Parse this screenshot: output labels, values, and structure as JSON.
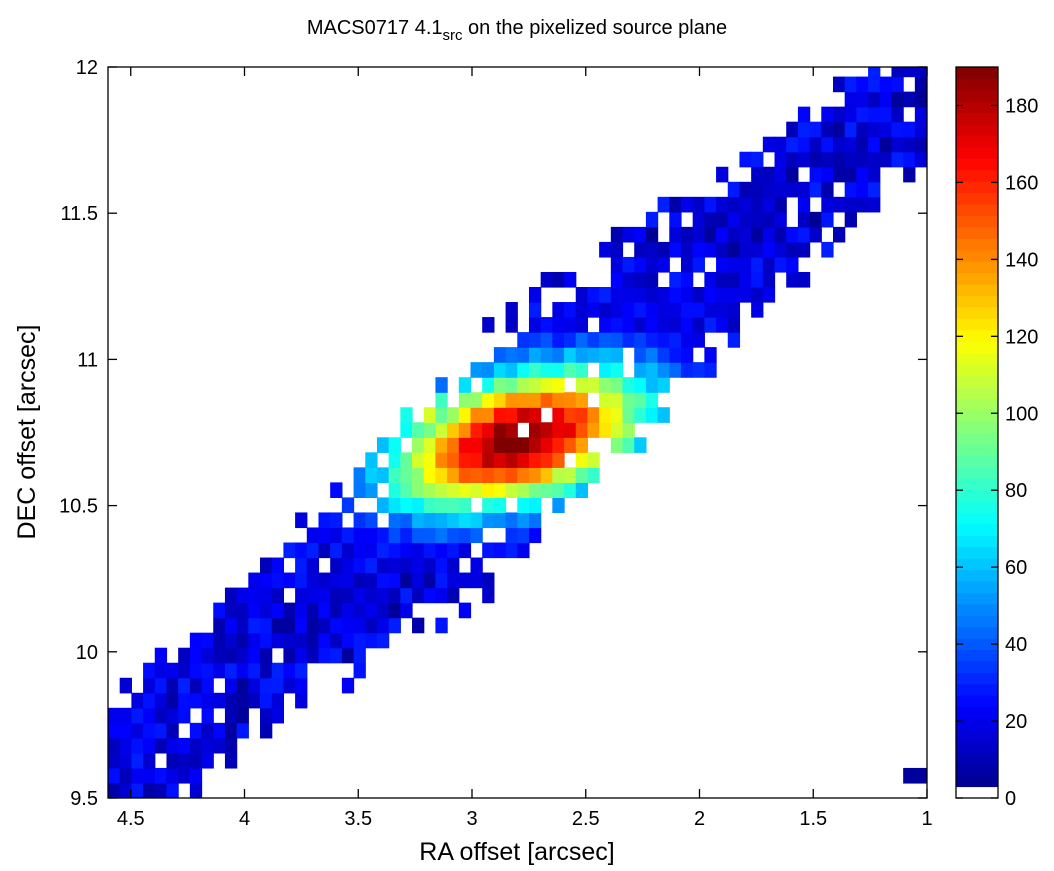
{
  "chart_data": {
    "type": "heatmap",
    "title": {
      "main": "MACS0717 4.1",
      "subscript": "src",
      "suffix": " on the pixelized source plane"
    },
    "xlabel": "RA offset [arcsec]",
    "ylabel": "DEC offset [arcsec]",
    "xlim": [
      4.6,
      1.0
    ],
    "ylim": [
      9.5,
      12.0
    ],
    "x_reversed": true,
    "x_ticks": [
      "4.5",
      "4",
      "3.5",
      "3",
      "2.5",
      "2",
      "1.5",
      "1"
    ],
    "y_ticks": [
      "9.5",
      "10",
      "10.5",
      "11",
      "11.5",
      "12"
    ],
    "colorbar": {
      "min": 0,
      "max": 190,
      "ticks": [
        "0",
        "20",
        "40",
        "60",
        "80",
        "100",
        "120",
        "140",
        "160",
        "180"
      ],
      "colormap": "jet",
      "zero_color": "#ffffff"
    },
    "pixel_size_arcsec": 0.0514,
    "model": {
      "source_center": {
        "ra": 2.79,
        "dec": 10.73,
        "peak": 185
      },
      "extended_region": {
        "axis_start": {
          "ra": 4.55,
          "dec": 9.58
        },
        "axis_end": {
          "ra": 1.03,
          "dec": 11.92
        },
        "half_width_dec": 0.3,
        "background_range": [
          4,
          30
        ]
      },
      "isolated_pixel": {
        "ra": 1.03,
        "dec": 9.58,
        "value": 5
      }
    },
    "grid": false,
    "legend": "none"
  }
}
